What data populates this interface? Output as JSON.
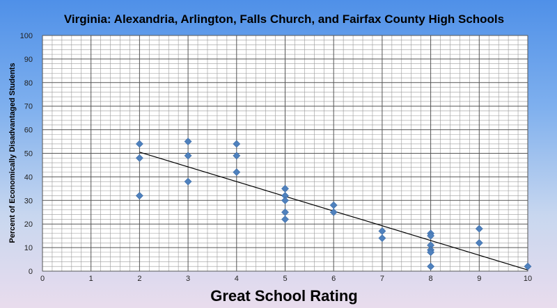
{
  "chart_data": {
    "type": "scatter",
    "title": "Virginia: Alexandria, Arlington, Falls Church, and Fairfax County High Schools",
    "xlabel": "Great School Rating",
    "ylabel": "Percent of Economically Disadvantaged Students",
    "xlim": [
      0,
      10
    ],
    "ylim": [
      0,
      100
    ],
    "x_ticks": [
      "0",
      "1",
      "2",
      "3",
      "4",
      "5",
      "6",
      "7",
      "8",
      "9",
      "10"
    ],
    "y_ticks": [
      "0",
      "10",
      "20",
      "30",
      "40",
      "50",
      "60",
      "70",
      "80",
      "90",
      "100"
    ],
    "grid": true,
    "marker": "diamond",
    "marker_color": "#4f81bd",
    "series": [
      {
        "points": [
          [
            2,
            54
          ],
          [
            2,
            48
          ],
          [
            2,
            32
          ],
          [
            3,
            55
          ],
          [
            3,
            49
          ],
          [
            3,
            38
          ],
          [
            4,
            54
          ],
          [
            4,
            49
          ],
          [
            4,
            42
          ],
          [
            5,
            35
          ],
          [
            5,
            32
          ],
          [
            5,
            30
          ],
          [
            5,
            25
          ],
          [
            5,
            22
          ],
          [
            6,
            28
          ],
          [
            6,
            25
          ],
          [
            7,
            17
          ],
          [
            7,
            14
          ],
          [
            8,
            16
          ],
          [
            8,
            15
          ],
          [
            8,
            11
          ],
          [
            8,
            9
          ],
          [
            8,
            8
          ],
          [
            8,
            2
          ],
          [
            9,
            18
          ],
          [
            9,
            12
          ],
          [
            10,
            2
          ]
        ]
      }
    ],
    "trendline": {
      "type": "linear",
      "points": [
        [
          2,
          50.5
        ],
        [
          10,
          0.5
        ]
      ],
      "color": "#000000"
    }
  }
}
